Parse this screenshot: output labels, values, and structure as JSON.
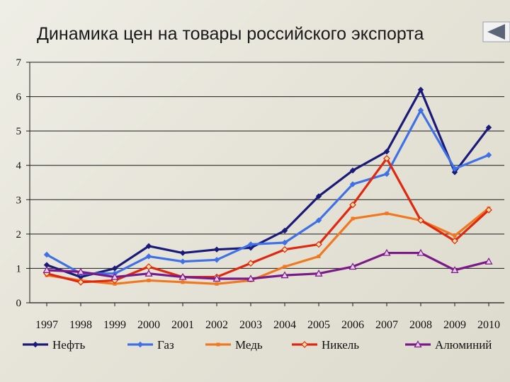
{
  "title": "Динамика цен на товары российского экспорта",
  "back_button_icon": "back-arrow-icon",
  "chart_data": {
    "type": "line",
    "title": "Динамика цен на товары российского экспорта",
    "xlabel": "",
    "ylabel": "",
    "categories": [
      "1997",
      "1998",
      "1999",
      "2000",
      "2001",
      "2002",
      "2003",
      "2004",
      "2005",
      "2006",
      "2007",
      "2008",
      "2009",
      "2010"
    ],
    "ylim": [
      0,
      7
    ],
    "yticks": [
      "0",
      "1",
      "2",
      "3",
      "4",
      "5",
      "6",
      "7"
    ],
    "grid": true,
    "legend_position": "bottom",
    "series": [
      {
        "name": "Нефть",
        "color": "#1a1a7a",
        "marker": "diamond",
        "values": [
          1.1,
          0.75,
          1.0,
          1.65,
          1.45,
          1.55,
          1.6,
          2.1,
          3.1,
          3.85,
          4.4,
          6.2,
          3.8,
          5.1
        ]
      },
      {
        "name": "Газ",
        "color": "#3f70e6",
        "marker": "diamond",
        "values": [
          1.4,
          0.85,
          0.85,
          1.35,
          1.2,
          1.25,
          1.7,
          1.75,
          2.4,
          3.45,
          3.75,
          5.6,
          3.9,
          4.3
        ]
      },
      {
        "name": "Медь",
        "color": "#f07820",
        "marker": "square",
        "values": [
          0.8,
          0.65,
          0.55,
          0.65,
          0.6,
          0.55,
          0.65,
          1.05,
          1.35,
          2.45,
          2.6,
          2.4,
          1.95,
          2.75
        ]
      },
      {
        "name": "Никель",
        "color": "#e02810",
        "marker": "diamond-open",
        "values": [
          0.85,
          0.6,
          0.65,
          1.05,
          0.75,
          0.75,
          1.15,
          1.55,
          1.7,
          2.85,
          4.2,
          2.4,
          1.8,
          2.7
        ]
      },
      {
        "name": "Алюминий",
        "color": "#7a1a88",
        "marker": "triangle",
        "values": [
          0.95,
          0.9,
          0.75,
          0.85,
          0.75,
          0.7,
          0.7,
          0.8,
          0.85,
          1.05,
          1.45,
          1.45,
          0.95,
          1.2
        ]
      }
    ]
  }
}
